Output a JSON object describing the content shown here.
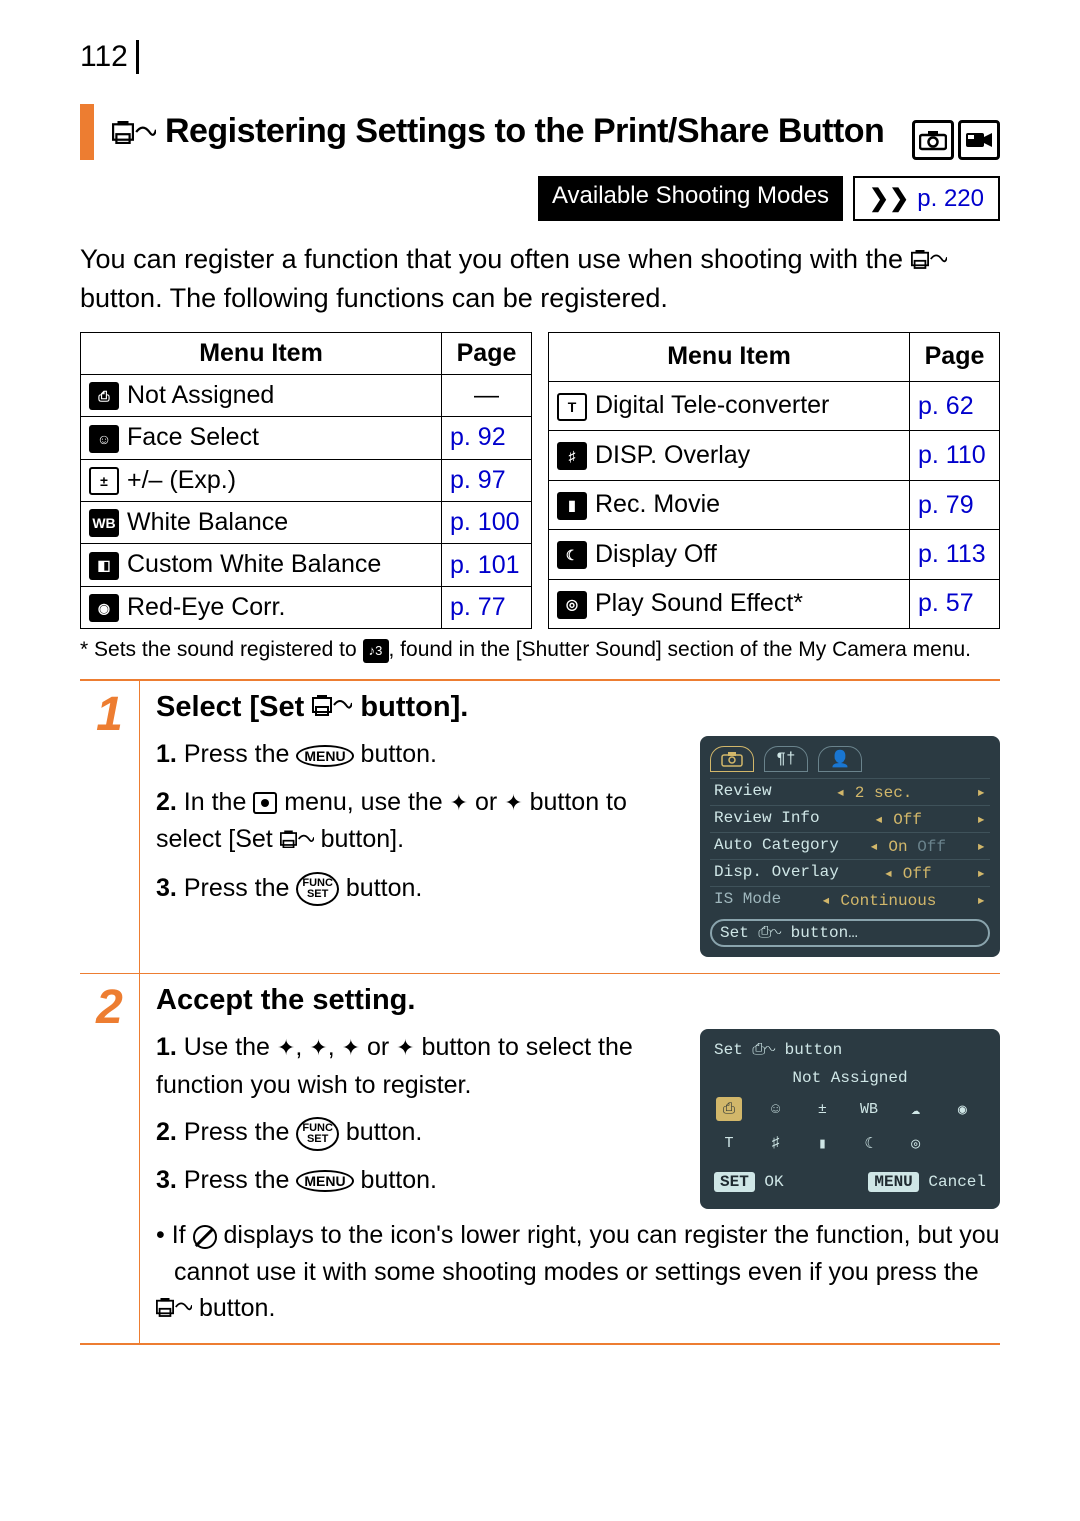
{
  "page_number": "112",
  "title": "Registering Settings to the Print/Share Button",
  "availability": {
    "label": "Available Shooting Modes",
    "page": "p. 220"
  },
  "intro_before": "You can register a function that you often use when shooting with the ",
  "intro_after": " button. The following functions can be registered.",
  "table_headers": {
    "item": "Menu Item",
    "page": "Page"
  },
  "left_table": [
    {
      "icon": "not-assigned",
      "label": "Not Assigned",
      "page": "—",
      "link": false
    },
    {
      "icon": "face",
      "label": "Face Select",
      "page": "p. 92",
      "link": true
    },
    {
      "icon": "exp",
      "label": "+/– (Exp.)",
      "page": "p. 97",
      "link": true
    },
    {
      "icon": "wb",
      "label": "White Balance",
      "page": "p. 100",
      "link": true
    },
    {
      "icon": "cwb",
      "label": "Custom White Balance",
      "page": "p. 101",
      "link": true
    },
    {
      "icon": "redeye",
      "label": "Red-Eye Corr.",
      "page": "p. 77",
      "link": true
    }
  ],
  "right_table": [
    {
      "icon": "tele",
      "label": "Digital Tele-converter",
      "page": "p. 62",
      "link": true
    },
    {
      "icon": "disp",
      "label": "DISP. Overlay",
      "page": "p. 110",
      "link": true
    },
    {
      "icon": "movie",
      "label": "Rec. Movie",
      "page": "p. 79",
      "link": true
    },
    {
      "icon": "dispoff",
      "label": "Display Off",
      "page": "p. 113",
      "link": true
    },
    {
      "icon": "sound",
      "label": "Play Sound Effect*",
      "page": "p. 57",
      "link": true
    }
  ],
  "footnote_before": "* Sets the sound registered to ",
  "footnote_after": ", found in the [Shutter Sound] section of the My Camera menu.",
  "steps": {
    "s1": {
      "num": "1",
      "title_before": "Select [Set ",
      "title_after": " button].",
      "i1_before": "Press the ",
      "i1_after": " button.",
      "i2": "In the  menu, use the  or  button to select [Set  button].",
      "i3_before": "Press the ",
      "i3_after": " button."
    },
    "s2": {
      "num": "2",
      "title": "Accept the setting.",
      "i1": "Use the , , or  button to select the function you wish to register.",
      "i2_before": "Press the ",
      "i2_after": " button.",
      "i3_before": "Press the ",
      "i3_after": " button.",
      "note_before": "If  displays to the icon's lower right, you can register the function, but you cannot use it with some shooting modes or settings even if you press the ",
      "note_after": " button."
    }
  },
  "lcd1": {
    "rows": [
      {
        "lbl": "Review",
        "val": "2 sec."
      },
      {
        "lbl": "Review Info",
        "val": "Off"
      },
      {
        "lbl": "Auto Category",
        "val": "On",
        "right": "Off"
      },
      {
        "lbl": "Disp. Overlay",
        "val": "Off"
      },
      {
        "lbl": "IS Mode",
        "val": "Continuous"
      }
    ],
    "set_row": "Set ⎙∿ button…"
  },
  "lcd2": {
    "title": "Set ⎙∿ button",
    "selected": "Not Assigned",
    "footer": {
      "ok": "OK",
      "set": "SET",
      "menu": "MENU",
      "cancel": "Cancel"
    }
  },
  "buttons": {
    "menu": "MENU",
    "func": "FUNC\nSET"
  },
  "colors": {
    "accent": "#ed7d31",
    "link": "#0000cc",
    "lcd_bg": "#2b3a42",
    "lcd_text": "#cfe6e6",
    "lcd_accent": "#d2b76a"
  }
}
